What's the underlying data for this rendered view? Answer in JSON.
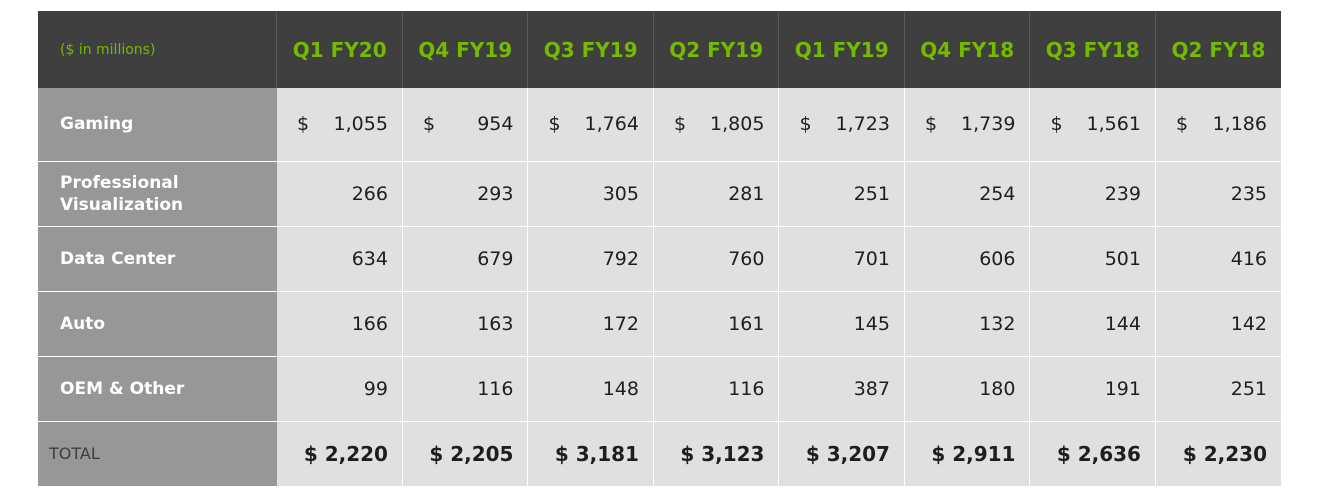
{
  "units_label": "($ in millions)",
  "quarters": [
    "Q1 FY20",
    "Q4 FY19",
    "Q3 FY19",
    "Q2 FY19",
    "Q1 FY19",
    "Q4 FY18",
    "Q3 FY18",
    "Q2 FY18"
  ],
  "currency_symbol": "$",
  "rows": [
    {
      "label": "Gaming",
      "values": [
        "1,055",
        "954",
        "1,764",
        "1,805",
        "1,723",
        "1,739",
        "1,561",
        "1,186"
      ]
    },
    {
      "label": "Professional Visualization",
      "values": [
        "266",
        "293",
        "305",
        "281",
        "251",
        "254",
        "239",
        "235"
      ]
    },
    {
      "label": "Data Center",
      "values": [
        "634",
        "679",
        "792",
        "760",
        "701",
        "606",
        "501",
        "416"
      ]
    },
    {
      "label": "Auto",
      "values": [
        "166",
        "163",
        "172",
        "161",
        "145",
        "132",
        "144",
        "142"
      ]
    },
    {
      "label": "OEM & Other",
      "values": [
        "99",
        "116",
        "148",
        "116",
        "387",
        "180",
        "191",
        "251"
      ]
    }
  ],
  "total": {
    "label": "TOTAL",
    "values": [
      "$ 2,220",
      "$ 2,205",
      "$ 3,181",
      "$ 3,123",
      "$ 3,207",
      "$ 2,911",
      "$ 2,636",
      "$ 2,230"
    ]
  },
  "colors": {
    "header_bg": "#3f3f3f",
    "header_text": "#76b900",
    "segment_bg": "#979797",
    "cell_bg": "#e0e0e0"
  }
}
